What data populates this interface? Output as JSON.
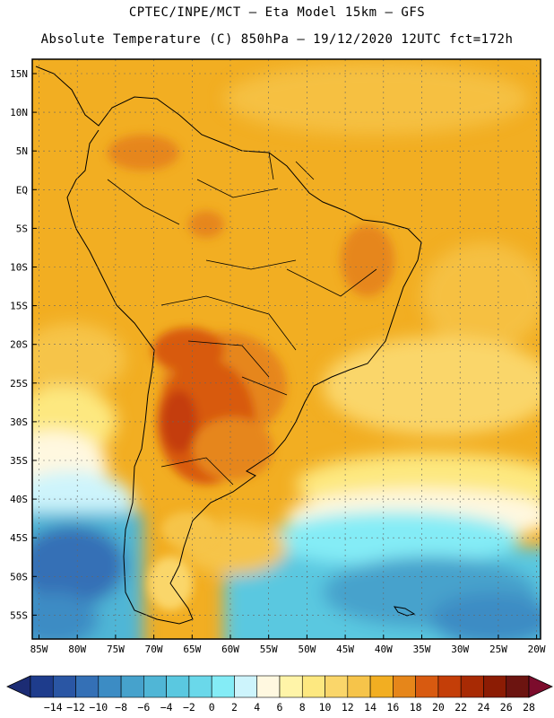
{
  "header": {
    "line1": "CPTEC/INPE/MCT –  Eta Model 15km – GFS",
    "line2": "Absolute Temperature (C) 850hPa – 19/12/2020 12UTC fct=172h"
  },
  "map": {
    "lat_labels": [
      "15N",
      "10N",
      "5N",
      "EQ",
      "5S",
      "10S",
      "15S",
      "20S",
      "25S",
      "30S",
      "35S",
      "40S",
      "45S",
      "50S",
      "55S"
    ],
    "lon_labels": [
      "85W",
      "80W",
      "75W",
      "70W",
      "65W",
      "60W",
      "55W",
      "50W",
      "45W",
      "40W",
      "35W",
      "30W",
      "25W",
      "20W"
    ]
  },
  "colorbar": {
    "labels": [
      "-14",
      "-12",
      "-10",
      "-8",
      "-6",
      "-4",
      "-2",
      "0",
      "2",
      "4",
      "6",
      "8",
      "10",
      "12",
      "14",
      "16",
      "18",
      "20",
      "22",
      "24",
      "26",
      "28"
    ],
    "colors": [
      "#1e3c8c",
      "#2a56a4",
      "#3470b6",
      "#3c8cc4",
      "#46a2cc",
      "#50b6d6",
      "#5ac8e0",
      "#6ad8ea",
      "#84ecf6",
      "#cdf4fc",
      "#fff8e0",
      "#fff4a8",
      "#fde880",
      "#fad66a",
      "#f6c44a",
      "#f2ae22",
      "#e6861a",
      "#d85a10",
      "#c43e08",
      "#a82a04",
      "#8c1c04",
      "#6c1410"
    ],
    "under_color": "#1c2c74",
    "over_color": "#7c0c2c"
  }
}
